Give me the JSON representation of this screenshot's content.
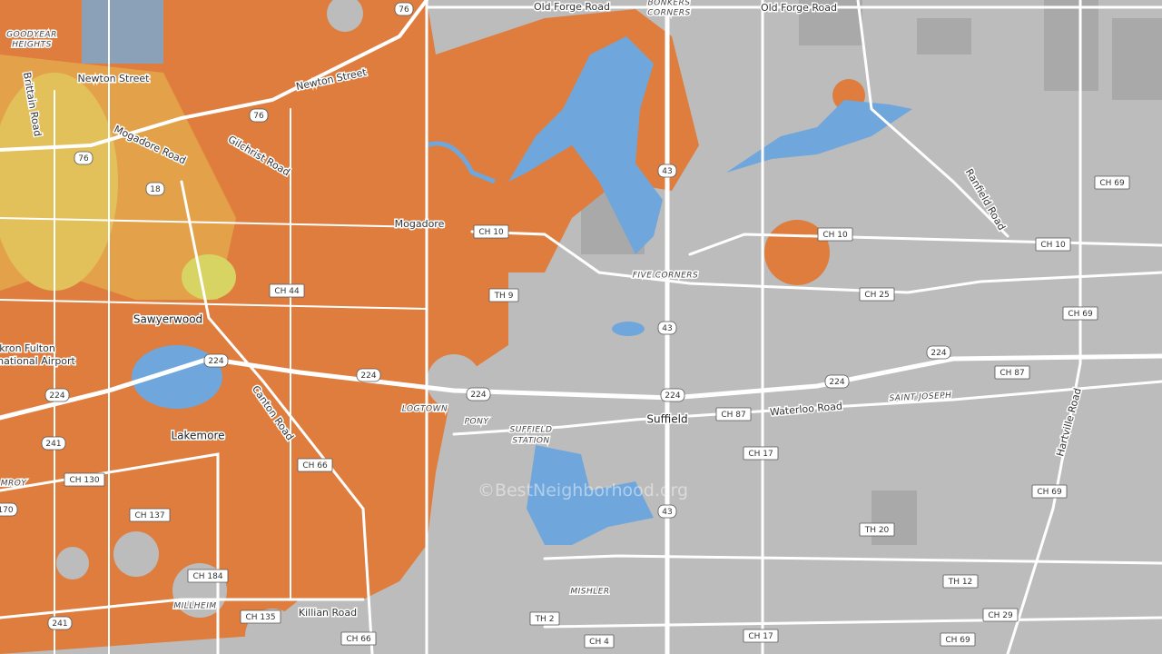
{
  "labels": [
    "Old Forge Road",
    "Old Forge Road",
    "BONKERS",
    "CORNERS",
    "GOODYEAR",
    "HEIGHTS",
    "Newton Street",
    "Newton Street",
    "Brittain Road",
    "Mogadore Road",
    "Gilchrist Road",
    "Mogadore",
    "Sawyerwood",
    "kron Fulton",
    "national Airport",
    "Lakemore",
    "Canton Road",
    "LOGTOWN",
    "PONY",
    "SUFFIELD",
    "STATION",
    "Suffield",
    "Waterloo Road",
    "SAINT JOSEPH",
    "FIVE CORNERS",
    "Ranfield Road",
    "Hartville Road",
    "MISHLER",
    "MILLHEIM",
    "Killian Road",
    "MROY"
  ],
  "shields": [
    "76",
    "76",
    "76",
    "18",
    "CH 10",
    "CH 10",
    "CH 10",
    "CH 44",
    "TH 9",
    "43",
    "43",
    "43",
    "CH 25",
    "CH 69",
    "CH 69",
    "CH 69",
    "CH 69",
    "224",
    "224",
    "224",
    "224",
    "224",
    "224",
    "224",
    "CH 87",
    "CH 87",
    "241",
    "241",
    "CH 130",
    "CH 66",
    "CH 66",
    "170",
    "CH 137",
    "CH 17",
    "CH 17",
    "TH 20",
    "CH 184",
    "CH 135",
    "TH 12",
    "CH 29",
    "TH 2",
    "CH 4"
  ],
  "watermark": "©BestNeighborhood.org"
}
